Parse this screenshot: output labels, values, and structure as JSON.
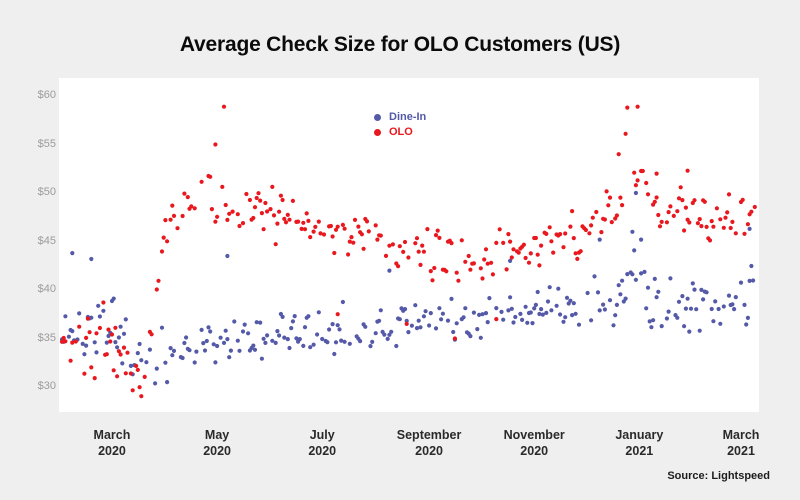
{
  "page": {
    "title": "Average Check Size for OLO Customers (US)",
    "source": "Source: Lightspeed",
    "background_color": "#f0efef",
    "panel_color": "#ffffff"
  },
  "chart_data": {
    "type": "scatter",
    "title": "Average Check Size for OLO Customers (US)",
    "xlabel": "",
    "ylabel": "",
    "grid": false,
    "legend_position": "top-center-inside",
    "point_radius": 2.1,
    "y_axis": {
      "prefix": "$",
      "min": 27.4,
      "max": 61.8,
      "ticks": [
        {
          "label": "$60",
          "value": 60
        },
        {
          "label": "$55",
          "value": 55
        },
        {
          "label": "$50",
          "value": 50
        },
        {
          "label": "$45",
          "value": 45
        },
        {
          "label": "$40",
          "value": 40
        },
        {
          "label": "$35",
          "value": 35
        },
        {
          "label": "$30",
          "value": 30
        }
      ]
    },
    "x_axis": {
      "total_days": 402,
      "ticks": [
        {
          "month": "March",
          "year": "2020",
          "day": 29
        },
        {
          "month": "May",
          "year": "2020",
          "day": 90
        },
        {
          "month": "July",
          "year": "2020",
          "day": 151
        },
        {
          "month": "September",
          "year": "2020",
          "day": 213
        },
        {
          "month": "November",
          "year": "2020",
          "day": 274
        },
        {
          "month": "January",
          "year": "2021",
          "day": 335
        },
        {
          "month": "March",
          "year": "2021",
          "day": 394
        }
      ]
    },
    "series": [
      {
        "name": "Dine-In",
        "color": "#5459a8",
        "seed": 13,
        "keep": 0.72,
        "week_amp": 1.1,
        "trend": [
          [
            0,
            36.5,
            2.8
          ],
          [
            29,
            36.0,
            2.8
          ],
          [
            44,
            32.8,
            2.4
          ],
          [
            60,
            33.5,
            2.4
          ],
          [
            90,
            34.8,
            2.2
          ],
          [
            121,
            35.2,
            2.2
          ],
          [
            151,
            35.6,
            2.2
          ],
          [
            182,
            36.0,
            2.2
          ],
          [
            213,
            36.6,
            2.2
          ],
          [
            244,
            37.2,
            2.4
          ],
          [
            274,
            37.6,
            2.4
          ],
          [
            304,
            38.4,
            2.4
          ],
          [
            323,
            39.5,
            2.6
          ],
          [
            334,
            42.5,
            3.0
          ],
          [
            340,
            38.8,
            2.8
          ],
          [
            366,
            38.0,
            3.0
          ],
          [
            394,
            39.0,
            3.0
          ],
          [
            401,
            39.5,
            3.0
          ]
        ],
        "outliers": [
          [
            333,
            50.0
          ],
          [
            331,
            46.0
          ],
          [
            336,
            45.2
          ],
          [
            399,
            46.3
          ],
          [
            6,
            43.8
          ],
          [
            17,
            43.2
          ],
          [
            96,
            43.5
          ],
          [
            190,
            42.0
          ],
          [
            260,
            43.0
          ],
          [
            312,
            45.2
          ]
        ]
      },
      {
        "name": "OLO",
        "color": "#e8181e",
        "seed": 7,
        "keep": 0.72,
        "week_amp": 1.1,
        "trend": [
          [
            0,
            34.5,
            4.2
          ],
          [
            25,
            34.5,
            4.0
          ],
          [
            40,
            30.8,
            2.4
          ],
          [
            50,
            32.5,
            2.8
          ],
          [
            57,
            43.0,
            3.5
          ],
          [
            63,
            47.0,
            3.0
          ],
          [
            84,
            49.5,
            2.8
          ],
          [
            105,
            48.5,
            2.8
          ],
          [
            121,
            48.0,
            2.6
          ],
          [
            151,
            46.2,
            2.4
          ],
          [
            182,
            44.6,
            2.2
          ],
          [
            213,
            43.6,
            2.2
          ],
          [
            244,
            43.5,
            2.2
          ],
          [
            274,
            44.2,
            2.2
          ],
          [
            304,
            45.8,
            2.4
          ],
          [
            323,
            48.5,
            2.6
          ],
          [
            331,
            51.0,
            2.8
          ],
          [
            337,
            51.5,
            3.0
          ],
          [
            344,
            48.5,
            2.4
          ],
          [
            366,
            47.6,
            2.2
          ],
          [
            401,
            48.0,
            2.4
          ]
        ],
        "outliers": [
          [
            94,
            58.9
          ],
          [
            89,
            55.0
          ],
          [
            328,
            58.8
          ],
          [
            334,
            58.9
          ],
          [
            327,
            56.1
          ],
          [
            323,
            54.0
          ],
          [
            363,
            52.3
          ],
          [
            345,
            52.0
          ],
          [
            200,
            36.5
          ],
          [
            228,
            35.0
          ],
          [
            252,
            37.0
          ],
          [
            160,
            37.5
          ]
        ]
      }
    ]
  }
}
